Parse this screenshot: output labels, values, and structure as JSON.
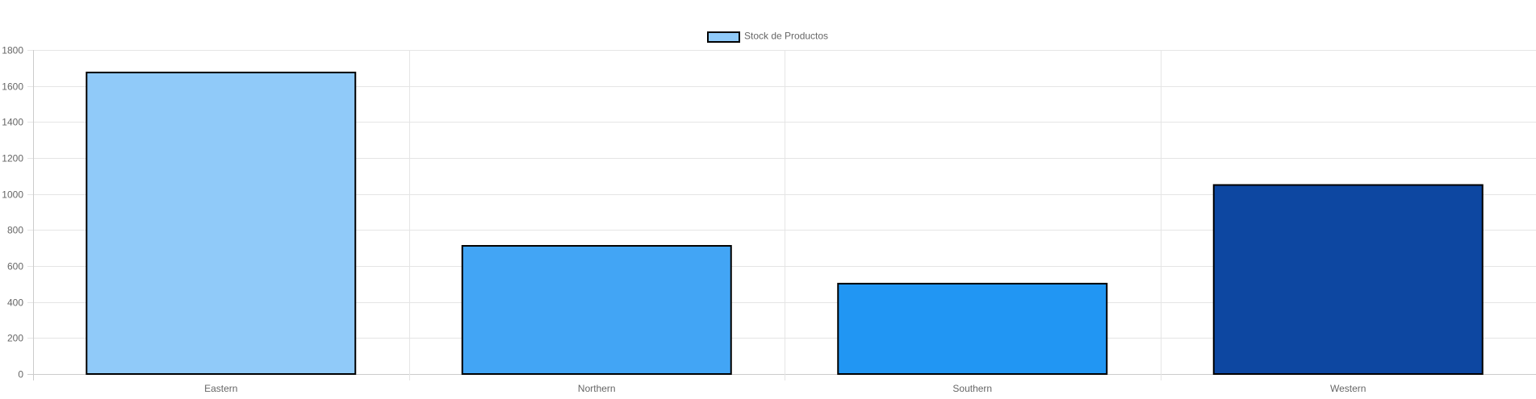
{
  "chart_data": {
    "type": "bar",
    "categories": [
      "Eastern",
      "Northern",
      "Southern",
      "Western"
    ],
    "series": [
      {
        "name": "Stock de Productos",
        "values": [
          1675,
          712,
          502,
          1050
        ],
        "colors": [
          "#90CAF9",
          "#42A5F5",
          "#2196F3",
          "#0D47A1"
        ]
      }
    ],
    "legend_swatch_color": "#90CAF9",
    "border_color": "#000000",
    "ylim": [
      0,
      1800
    ],
    "yticks": [
      0,
      200,
      400,
      600,
      800,
      1000,
      1200,
      1400,
      1600,
      1800
    ],
    "grid": true,
    "legend_position": "top",
    "title": "",
    "xlabel": "",
    "ylabel": ""
  }
}
